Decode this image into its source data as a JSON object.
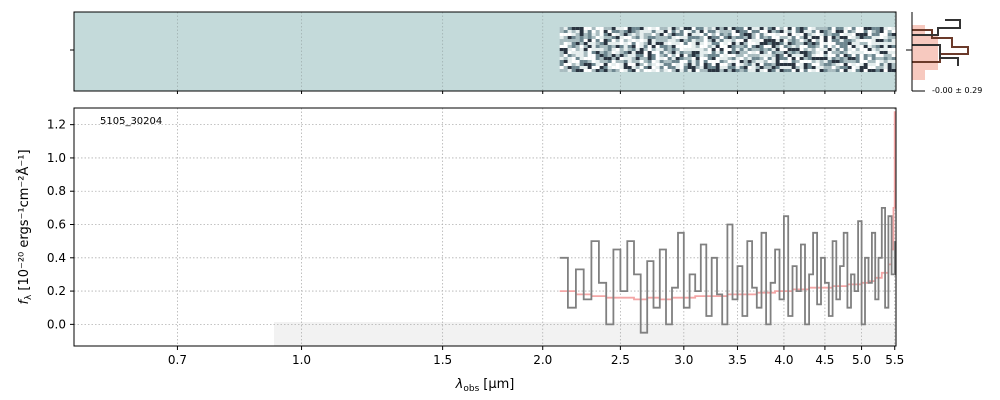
{
  "chart_data": {
    "type": "line",
    "object_id": "5105_30204",
    "xlabel_main": "λ",
    "xlabel_sub": "obs",
    "xlabel_unit": "[μm]",
    "ylabel_main": "f",
    "ylabel_sub": "λ",
    "ylabel_unit": "[10⁻²⁰ ergs⁻¹cm⁻²Å⁻¹]",
    "x_ticks": [
      0.7,
      1.0,
      1.5,
      2.0,
      2.5,
      3.0,
      3.5,
      4.0,
      4.5,
      5.0,
      5.5
    ],
    "x_tick_labels": [
      "0.7",
      "1.0",
      "1.5",
      "2.0",
      "2.5",
      "3.0",
      "3.5",
      "4.0",
      "4.5",
      "5.0",
      "5.5"
    ],
    "y_ticks": [
      0.0,
      0.2,
      0.4,
      0.6,
      0.8,
      1.0,
      1.2
    ],
    "y_tick_labels": [
      "0.0",
      "0.2",
      "0.4",
      "0.6",
      "0.8",
      "1.0",
      "1.2"
    ],
    "ylim": [
      -0.13,
      1.3
    ],
    "xlim": [
      0.52,
      5.52
    ],
    "grid": true,
    "sidepanel_label": "-0.00 ± 0.29",
    "colors": {
      "data": "#808080",
      "model": "#f4a6a6",
      "twod_bg": "#c4dada",
      "hist_dark": "#333333",
      "hist_brown": "#6b3a2a",
      "hist_fill": "#f7c9bf"
    },
    "series": [
      {
        "name": "",
        "color": "#808080",
        "x": [
          2.1,
          2.15,
          2.2,
          2.25,
          2.3,
          2.35,
          2.4,
          2.45,
          2.5,
          2.55,
          2.6,
          2.65,
          2.7,
          2.75,
          2.8,
          2.85,
          2.9,
          2.95,
          3.0,
          3.05,
          3.1,
          3.15,
          3.2,
          3.25,
          3.3,
          3.35,
          3.4,
          3.45,
          3.5,
          3.55,
          3.6,
          3.65,
          3.7,
          3.75,
          3.8,
          3.85,
          3.9,
          3.95,
          4.0,
          4.05,
          4.1,
          4.15,
          4.2,
          4.25,
          4.3,
          4.35,
          4.4,
          4.45,
          4.5,
          4.55,
          4.6,
          4.65,
          4.7,
          4.75,
          4.8,
          4.85,
          4.9,
          4.95,
          5.0,
          5.05,
          5.1,
          5.15,
          5.2,
          5.25,
          5.3,
          5.35,
          5.4,
          5.45,
          5.5
        ],
        "values": [
          0.4,
          0.1,
          0.33,
          0.15,
          0.5,
          0.25,
          0.0,
          0.45,
          0.2,
          0.5,
          0.3,
          -0.05,
          0.38,
          0.1,
          0.45,
          0.0,
          0.22,
          0.55,
          0.1,
          0.3,
          0.2,
          0.48,
          0.05,
          0.4,
          0.18,
          0.0,
          0.6,
          0.15,
          0.35,
          0.05,
          0.5,
          0.22,
          0.1,
          0.55,
          0.0,
          0.25,
          0.45,
          0.15,
          0.65,
          0.05,
          0.35,
          0.2,
          0.48,
          0.0,
          0.3,
          0.55,
          0.12,
          0.4,
          0.25,
          0.05,
          0.5,
          0.15,
          0.35,
          0.55,
          0.1,
          0.3,
          0.2,
          0.62,
          0.0,
          0.4,
          0.25,
          0.55,
          0.15,
          0.4,
          0.7,
          0.1,
          0.65,
          0.3,
          0.5
        ]
      },
      {
        "name": "",
        "color": "#f4a6a6",
        "x": [
          2.1,
          2.2,
          2.3,
          2.4,
          2.5,
          2.6,
          2.7,
          2.8,
          2.9,
          3.0,
          3.1,
          3.2,
          3.3,
          3.4,
          3.5,
          3.6,
          3.7,
          3.8,
          3.9,
          4.0,
          4.1,
          4.2,
          4.3,
          4.4,
          4.5,
          4.6,
          4.7,
          4.8,
          4.9,
          5.0,
          5.1,
          5.2,
          5.3,
          5.4,
          5.45,
          5.48,
          5.5
        ],
        "values": [
          0.2,
          0.18,
          0.17,
          0.16,
          0.16,
          0.15,
          0.16,
          0.15,
          0.16,
          0.16,
          0.17,
          0.17,
          0.17,
          0.18,
          0.18,
          0.18,
          0.19,
          0.19,
          0.2,
          0.2,
          0.21,
          0.21,
          0.22,
          0.22,
          0.22,
          0.23,
          0.23,
          0.24,
          0.24,
          0.25,
          0.26,
          0.28,
          0.31,
          0.36,
          0.45,
          0.7,
          1.28
        ]
      }
    ]
  }
}
